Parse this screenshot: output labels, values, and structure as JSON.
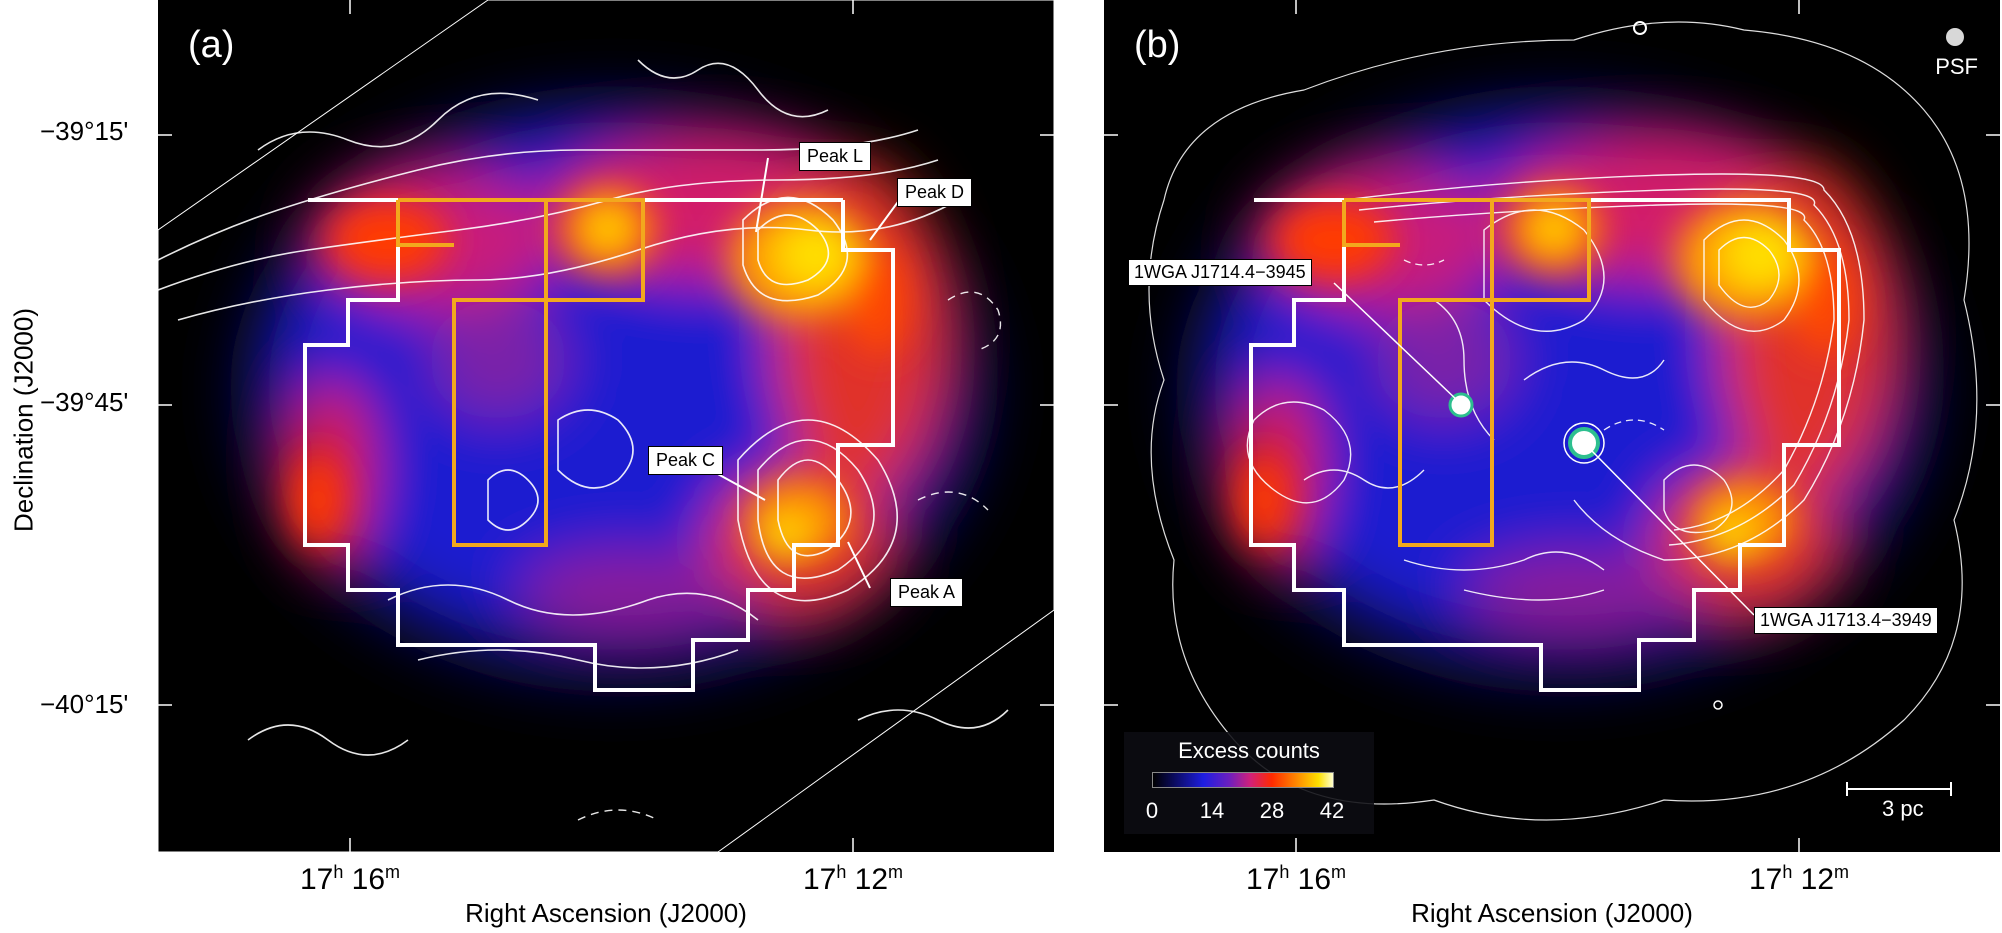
{
  "panel_a": {
    "letter": "(a)",
    "peaks": {
      "peak_l": "Peak L",
      "peak_d": "Peak D",
      "peak_c": "Peak C",
      "peak_a": "Peak A"
    }
  },
  "panel_b": {
    "letter": "(b)",
    "psf": "PSF",
    "source_1": "1WGA J1714.4−3945",
    "source_2": "1WGA J1713.4−3949",
    "colorbar": {
      "title": "Excess counts",
      "ticks": [
        "0",
        "14",
        "28",
        "42"
      ]
    },
    "scale": "3 pc"
  },
  "axes": {
    "ylabel": "Declination (J2000)",
    "yticks": [
      "−39°15'",
      "−39°45'",
      "−40°15'"
    ],
    "xlabel": "Right Ascension (J2000)",
    "xticks": [
      {
        "h": "17",
        "hu": "h",
        "m": "16",
        "mu": "m"
      },
      {
        "h": "17",
        "hu": "h",
        "m": "12",
        "mu": "m"
      }
    ]
  },
  "colors": {
    "box_white": "#ffffff",
    "box_orange": "#f2a81d",
    "contour": "#ffffff",
    "source_ring": "#2dbf8f"
  }
}
